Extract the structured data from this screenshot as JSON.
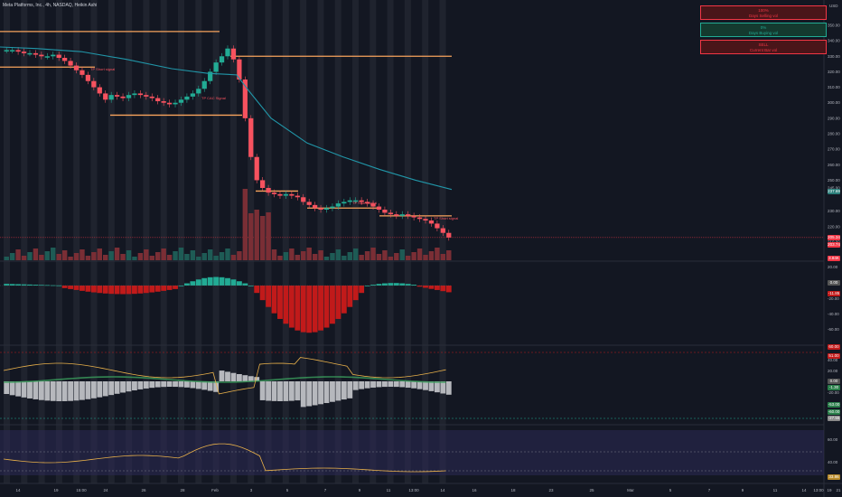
{
  "symbol_title": "Meta Platforms, Inc., 4h, NASDAQ, Heikin Ashi",
  "currency": "USD",
  "stats": [
    {
      "value": "100%",
      "label": "Days Selling vol",
      "bg": "#4a1519",
      "color": "#f23645"
    },
    {
      "value": "0%",
      "label": "Days Buying vol",
      "bg": "#143a2f",
      "color": "#22ab94"
    },
    {
      "value": "SELL",
      "label": "Current Bar vol",
      "bg": "#4a1519",
      "color": "#f23645"
    }
  ],
  "price_axis": [
    "350.00",
    "340.00",
    "330.00",
    "320.00",
    "310.00",
    "300.00",
    "290.00",
    "280.00",
    "270.00",
    "260.00",
    "250.00",
    "245.00",
    "230.00",
    "220.00",
    "210.00"
  ],
  "price_boxes": [
    {
      "label": "237.69",
      "bg": "#2a7e7a"
    },
    {
      "label": "205.34",
      "bg": "#f23645"
    },
    {
      "label": "203.74",
      "bg": "#f23645"
    },
    {
      "label": "3.84K",
      "bg": "#f23645"
    }
  ],
  "macd_axis": [
    "20.00",
    "0.00",
    "-20.00",
    "-40.00",
    "-60.00"
  ],
  "macd_boxes": [
    {
      "label": "0.00",
      "bg": "#555"
    },
    {
      "label": "-11.85",
      "bg": "#c11a1a"
    }
  ],
  "osc_axis": [
    "60.00",
    "40.00",
    "20.00",
    "0.00",
    "-20.00",
    "-40.00"
  ],
  "osc_boxes": [
    {
      "label": "60.00",
      "bg": "#c11a1a"
    },
    {
      "label": "51.00",
      "bg": "#c11a1a"
    },
    {
      "label": "0.00",
      "bg": "#555"
    },
    {
      "label": "-1.30",
      "bg": "#2a7e4a"
    },
    {
      "label": "-53.00",
      "bg": "#2a7e4a"
    },
    {
      "label": "-60.00",
      "bg": "#2a7e4a"
    },
    {
      "label": "-27.55",
      "bg": "#8a8a8a"
    }
  ],
  "rsi_axis": [
    "60.00",
    "40.00"
  ],
  "rsi_boxes": [
    {
      "label": "33.86",
      "bg": "#b88a2a"
    }
  ],
  "annotations": [
    {
      "text": "TP Short signal",
      "id": "a1"
    },
    {
      "text": "TP CAC Signal",
      "id": "a2"
    },
    {
      "text": "TP Short signal",
      "id": "a3"
    },
    {
      "text": "TP Short signal",
      "id": "a4"
    }
  ],
  "time_axis": [
    "14",
    "19",
    "15:00",
    "24",
    "26",
    "28",
    "Feb",
    "3",
    "5",
    "7",
    "9",
    "11",
    "13:00",
    "14",
    "16",
    "18",
    "23",
    "25",
    "Mar",
    "5",
    "7",
    "9",
    "11",
    "14",
    "13:00",
    "19",
    "21"
  ],
  "colors": {
    "up": "#22ab94",
    "down": "#f7525f",
    "level": "#f7a35c",
    "ema": "#2196a8"
  }
}
